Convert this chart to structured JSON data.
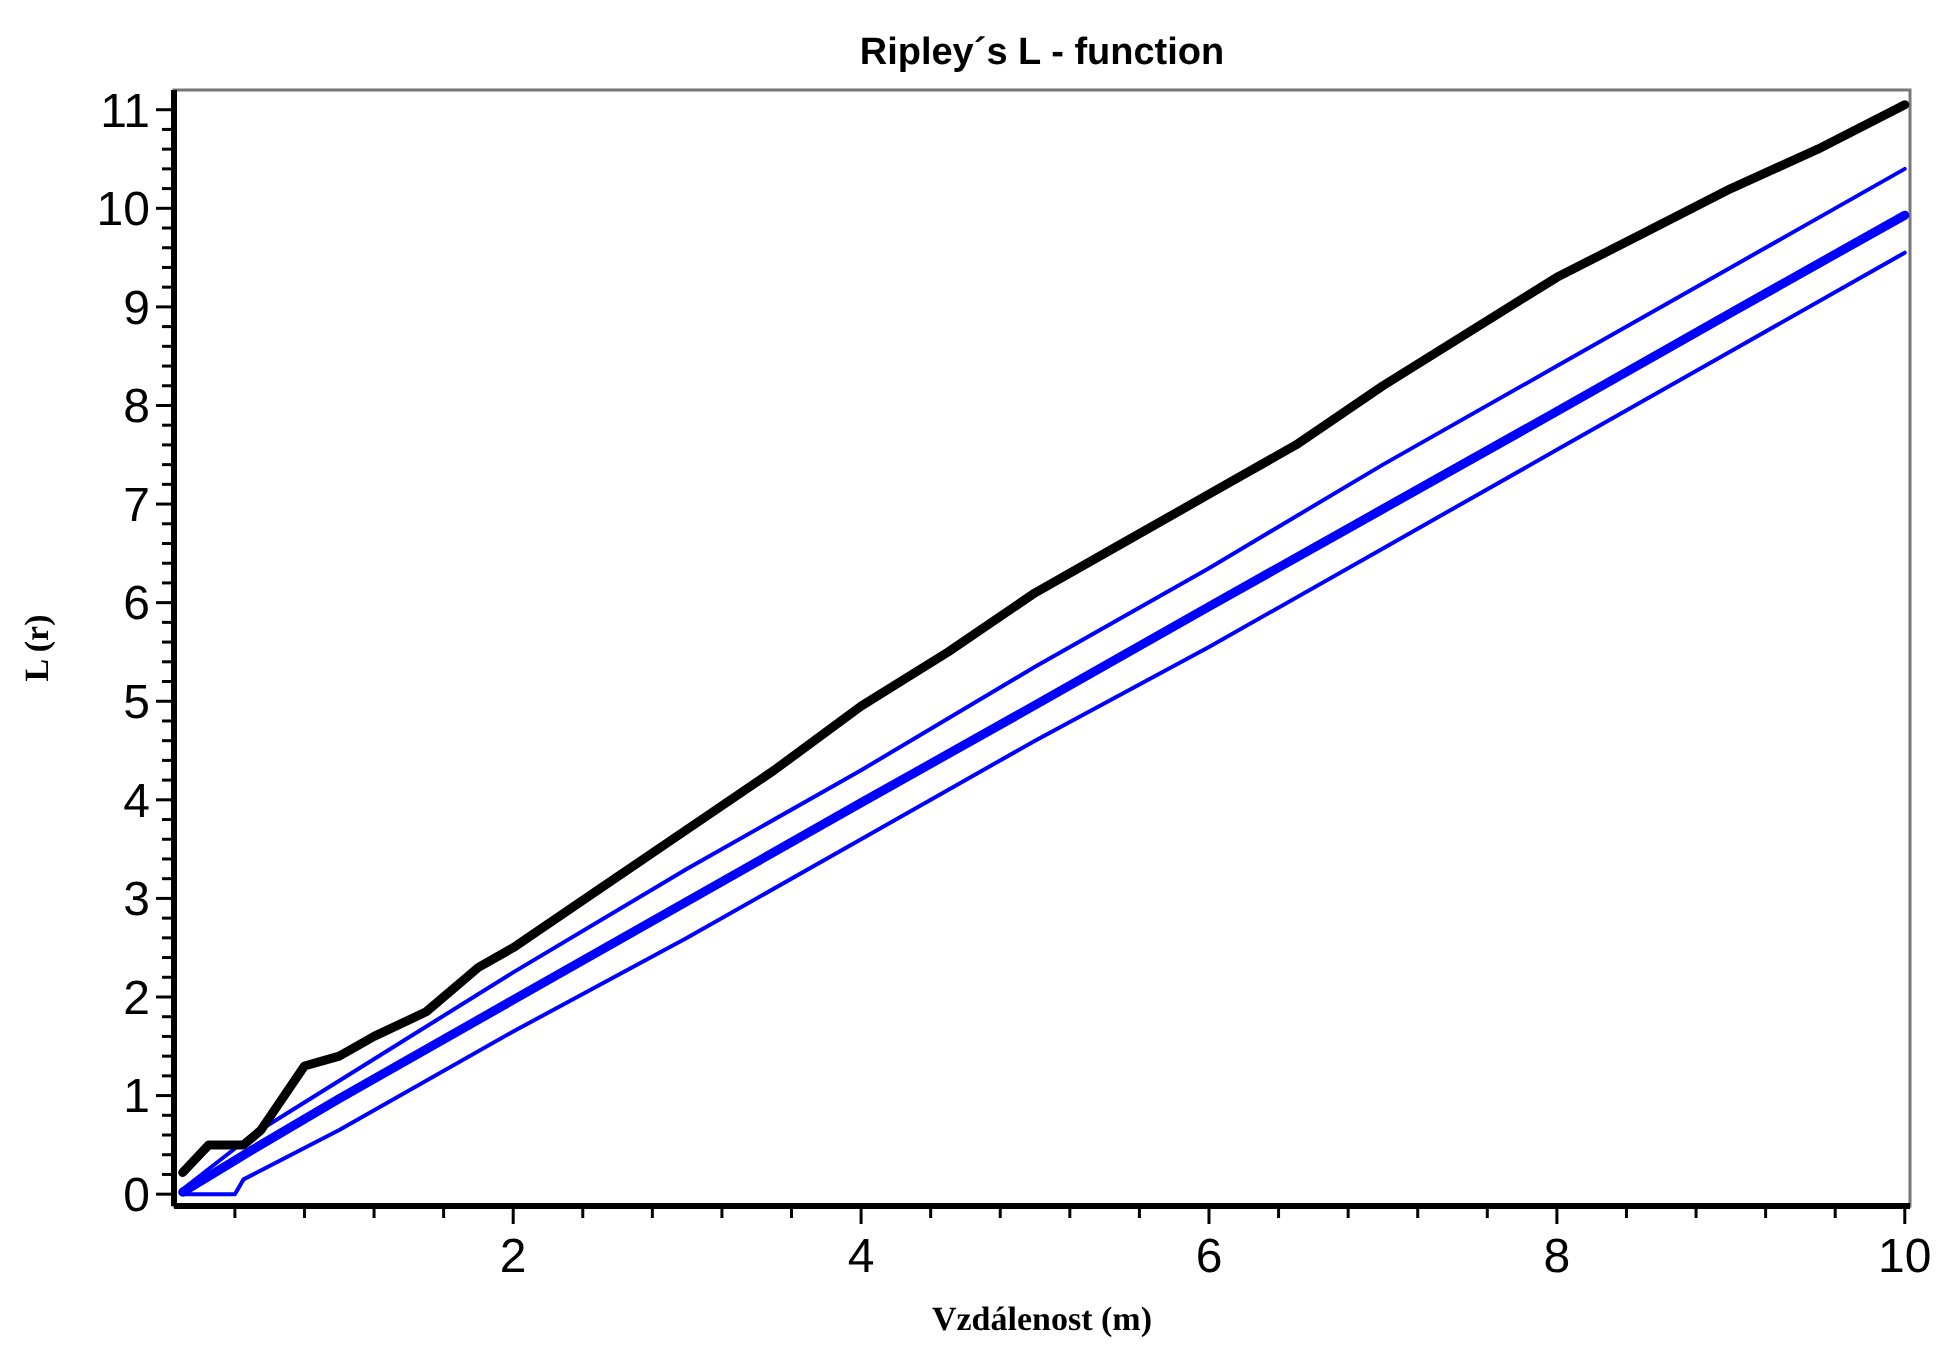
{
  "chart_data": {
    "type": "line",
    "title": "Ripley´s L - function",
    "xlabel": "Vzdálenost (m)",
    "ylabel": "L (r)",
    "xlim": [
      0.05,
      10.03
    ],
    "ylim": [
      -0.12,
      11.2
    ],
    "xticks": [
      {
        "value": 0.4,
        "label": null
      },
      {
        "value": 0.8,
        "label": null
      },
      {
        "value": 1.2,
        "label": null
      },
      {
        "value": 1.6,
        "label": null
      },
      2,
      {
        "value": 2.4,
        "label": null
      },
      {
        "value": 2.8,
        "label": null
      },
      {
        "value": 3.2,
        "label": null
      },
      {
        "value": 3.6,
        "label": null
      },
      4,
      {
        "value": 4.4,
        "label": null
      },
      {
        "value": 4.8,
        "label": null
      },
      {
        "value": 5.2,
        "label": null
      },
      {
        "value": 5.6,
        "label": null
      },
      6,
      {
        "value": 6.4,
        "label": null
      },
      {
        "value": 6.8,
        "label": null
      },
      {
        "value": 7.2,
        "label": null
      },
      {
        "value": 7.6,
        "label": null
      },
      8,
      {
        "value": 8.4,
        "label": null
      },
      {
        "value": 8.8,
        "label": null
      },
      {
        "value": 9.2,
        "label": null
      },
      {
        "value": 9.6,
        "label": null
      },
      10
    ],
    "yticks": [
      0,
      {
        "value": 0.2,
        "label": null
      },
      {
        "value": 0.4,
        "label": null
      },
      {
        "value": 0.6,
        "label": null
      },
      {
        "value": 0.8,
        "label": null
      },
      1,
      {
        "value": 1.2,
        "label": null
      },
      {
        "value": 1.4,
        "label": null
      },
      {
        "value": 1.6,
        "label": null
      },
      {
        "value": 1.8,
        "label": null
      },
      2,
      {
        "value": 2.2,
        "label": null
      },
      {
        "value": 2.4,
        "label": null
      },
      {
        "value": 2.6,
        "label": null
      },
      {
        "value": 2.8,
        "label": null
      },
      3,
      {
        "value": 3.2,
        "label": null
      },
      {
        "value": 3.4,
        "label": null
      },
      {
        "value": 3.6,
        "label": null
      },
      {
        "value": 3.8,
        "label": null
      },
      4,
      {
        "value": 4.2,
        "label": null
      },
      {
        "value": 4.4,
        "label": null
      },
      {
        "value": 4.6,
        "label": null
      },
      {
        "value": 4.8,
        "label": null
      },
      5,
      {
        "value": 5.2,
        "label": null
      },
      {
        "value": 5.4,
        "label": null
      },
      {
        "value": 5.6,
        "label": null
      },
      {
        "value": 5.8,
        "label": null
      },
      6,
      {
        "value": 6.2,
        "label": null
      },
      {
        "value": 6.4,
        "label": null
      },
      {
        "value": 6.6,
        "label": null
      },
      {
        "value": 6.8,
        "label": null
      },
      7,
      {
        "value": 7.2,
        "label": null
      },
      {
        "value": 7.4,
        "label": null
      },
      {
        "value": 7.6,
        "label": null
      },
      {
        "value": 7.8,
        "label": null
      },
      8,
      {
        "value": 8.2,
        "label": null
      },
      {
        "value": 8.4,
        "label": null
      },
      {
        "value": 8.6,
        "label": null
      },
      {
        "value": 8.8,
        "label": null
      },
      9,
      {
        "value": 9.2,
        "label": null
      },
      {
        "value": 9.4,
        "label": null
      },
      {
        "value": 9.6,
        "label": null
      },
      {
        "value": 9.8,
        "label": null
      },
      10,
      {
        "value": 10.2,
        "label": null
      },
      {
        "value": 10.4,
        "label": null
      },
      {
        "value": 10.6,
        "label": null
      },
      {
        "value": 10.8,
        "label": null
      },
      11
    ],
    "grid": false,
    "line_style": "solid",
    "marker": "none",
    "series": [
      {
        "color": "#0000ff",
        "x": [
          0.1,
          0.5,
          1,
          2,
          3,
          4,
          5,
          6,
          7,
          8,
          9,
          10
        ],
        "values": [
          0.05,
          0.6,
          1.15,
          2.25,
          3.3,
          4.3,
          5.35,
          6.35,
          7.4,
          8.4,
          9.4,
          10.4
        ]
      },
      {
        "color": "#0000ff",
        "x": [
          0.1,
          0.4,
          0.45,
          1,
          2,
          3,
          4,
          5,
          6,
          7,
          8,
          9,
          10
        ],
        "values": [
          0,
          0,
          0.15,
          0.65,
          1.65,
          2.6,
          3.6,
          4.6,
          5.55,
          6.55,
          7.55,
          8.55,
          9.55
        ]
      },
      {
        "color": "#0000ff",
        "x": [
          0.1,
          0.5,
          1,
          2,
          3,
          4,
          5,
          6,
          7,
          8,
          9,
          10
        ],
        "values": [
          0.02,
          0.45,
          0.97,
          1.97,
          2.97,
          3.97,
          4.96,
          5.96,
          6.95,
          7.94,
          8.94,
          9.93
        ]
      },
      {
        "color": "#000000",
        "x": [
          0.1,
          0.25,
          0.45,
          0.55,
          0.8,
          1,
          1.2,
          1.5,
          1.8,
          2,
          2.5,
          3,
          3.5,
          4,
          4.5,
          5,
          5.5,
          6,
          6.5,
          7,
          7.5,
          8,
          8.5,
          9,
          9.5,
          10
        ],
        "values": [
          0.22,
          0.5,
          0.5,
          0.65,
          1.3,
          1.4,
          1.6,
          1.85,
          2.3,
          2.5,
          3.1,
          3.7,
          4.3,
          4.95,
          5.5,
          6.1,
          6.6,
          7.1,
          7.6,
          8.2,
          8.75,
          9.3,
          9.75,
          10.2,
          10.6,
          11.05
        ]
      }
    ]
  }
}
